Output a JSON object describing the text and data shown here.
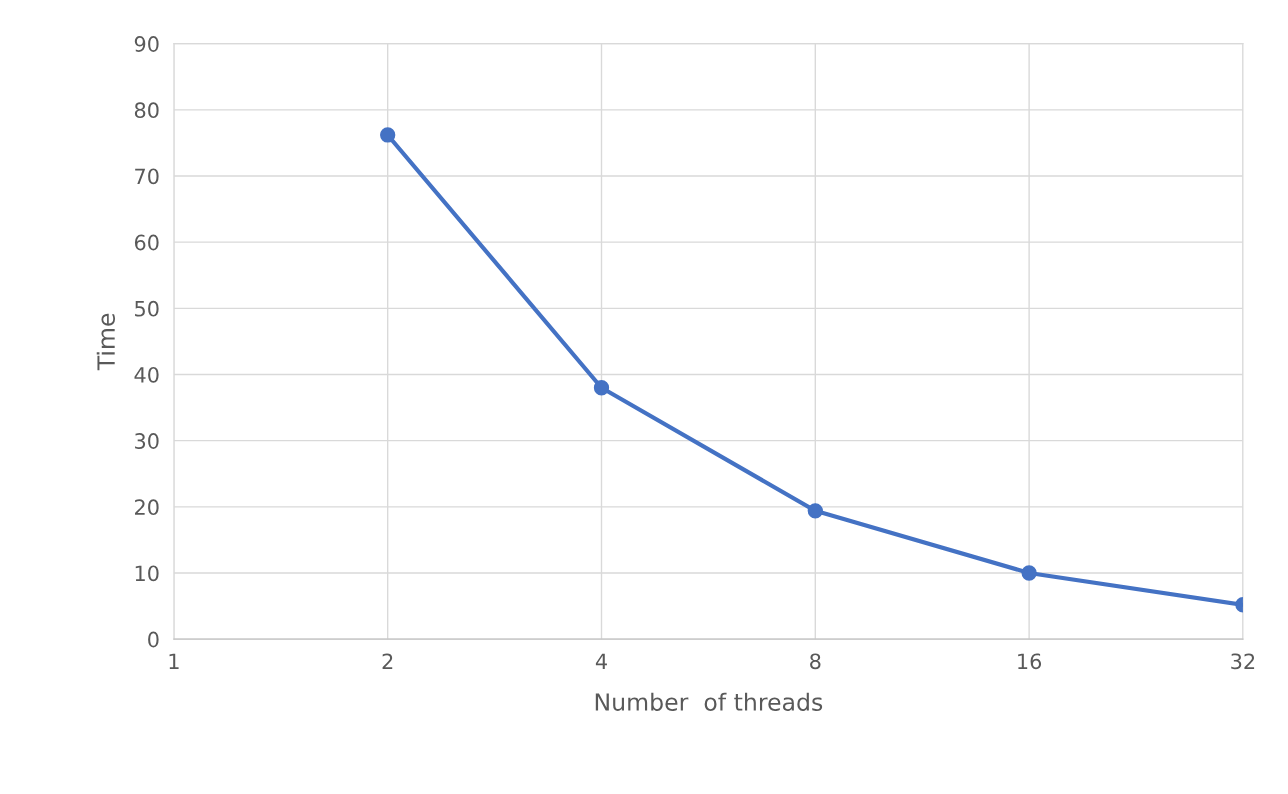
{
  "chart_data": {
    "type": "line",
    "xlabel": "Number  of threads",
    "ylabel": "Time",
    "x": [
      2,
      4,
      8,
      16,
      32
    ],
    "series": [
      {
        "color": "#4472c4",
        "values": [
          76.2,
          38.0,
          19.4,
          10.0,
          5.2
        ]
      }
    ],
    "log": "x",
    "xlim": [
      1,
      32
    ],
    "xticks": [
      1,
      2,
      4,
      8,
      16,
      32
    ],
    "ylim": [
      0,
      90
    ],
    "yticks": [
      0,
      10,
      20,
      30,
      40,
      50,
      60,
      70,
      80,
      90
    ],
    "grid": true,
    "marker": "circle",
    "line_style": "solid"
  }
}
